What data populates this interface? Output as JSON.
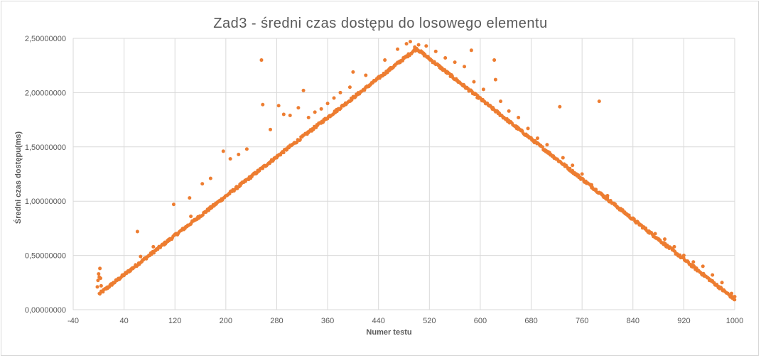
{
  "chart_data": {
    "type": "scatter",
    "title": "Zad3 - średni czas dostępu do losowego elementu",
    "xlabel": "Numer testu",
    "ylabel": "Średni czas dostępu(ms)",
    "xlim": [
      -40,
      1000
    ],
    "ylim": [
      0,
      2.5
    ],
    "x_ticks": [
      -40,
      40,
      120,
      200,
      280,
      360,
      440,
      520,
      600,
      680,
      760,
      840,
      920,
      1000
    ],
    "x_tick_labels": [
      "-40",
      "40",
      "120",
      "200",
      "280",
      "360",
      "440",
      "520",
      "600",
      "680",
      "760",
      "840",
      "920",
      "1000"
    ],
    "y_ticks": [
      0,
      0.5,
      1.0,
      1.5,
      2.0,
      2.5
    ],
    "y_tick_labels": [
      "0,00000000",
      "0,50000000",
      "1,00000000",
      "1,50000000",
      "2,00000000",
      "2,50000000"
    ],
    "grid": true,
    "legend": "none",
    "marker_color": "#ed7d31",
    "main_trend": {
      "rising": {
        "x_start": 1,
        "y_start": 0.14,
        "x_end": 500,
        "y_end": 2.4
      },
      "falling": {
        "x_start": 500,
        "y_end_at_x": 1000,
        "y_start": 2.4,
        "y_end": 0.09
      }
    },
    "series": [
      {
        "name": "",
        "points": [
          [
            -2,
            0.21
          ],
          [
            -1,
            0.27
          ],
          [
            0,
            0.33
          ],
          [
            1,
            0.3
          ],
          [
            2,
            0.38
          ],
          [
            3,
            0.29
          ],
          [
            4,
            0.22
          ],
          [
            61,
            0.72
          ],
          [
            66,
            0.49
          ],
          [
            86,
            0.58
          ],
          [
            100,
            0.6
          ],
          [
            118,
            0.97
          ],
          [
            143,
            1.03
          ],
          [
            145,
            0.86
          ],
          [
            163,
            1.16
          ],
          [
            176,
            1.21
          ],
          [
            196,
            1.46
          ],
          [
            207,
            1.39
          ],
          [
            220,
            1.43
          ],
          [
            233,
            1.48
          ],
          [
            256,
            2.3
          ],
          [
            258,
            1.89
          ],
          [
            270,
            1.66
          ],
          [
            283,
            1.88
          ],
          [
            291,
            1.8
          ],
          [
            301,
            1.79
          ],
          [
            314,
            1.86
          ],
          [
            322,
            2.02
          ],
          [
            330,
            1.77
          ],
          [
            340,
            1.82
          ],
          [
            350,
            1.85
          ],
          [
            360,
            1.9
          ],
          [
            370,
            1.95
          ],
          [
            380,
            2.0
          ],
          [
            395,
            2.05
          ],
          [
            400,
            2.19
          ],
          [
            420,
            2.16
          ],
          [
            450,
            2.3
          ],
          [
            470,
            2.4
          ],
          [
            484,
            2.45
          ],
          [
            490,
            2.47
          ],
          [
            497,
            2.42
          ],
          [
            503,
            2.44
          ],
          [
            515,
            2.43
          ],
          [
            530,
            2.38
          ],
          [
            545,
            2.32
          ],
          [
            560,
            2.28
          ],
          [
            575,
            2.24
          ],
          [
            586,
            2.39
          ],
          [
            590,
            2.1
          ],
          [
            605,
            2.03
          ],
          [
            622,
            2.3
          ],
          [
            624,
            2.12
          ],
          [
            632,
            1.92
          ],
          [
            645,
            1.83
          ],
          [
            660,
            1.77
          ],
          [
            675,
            1.67
          ],
          [
            690,
            1.58
          ],
          [
            705,
            1.52
          ],
          [
            725,
            1.87
          ],
          [
            730,
            1.4
          ],
          [
            745,
            1.33
          ],
          [
            760,
            1.25
          ],
          [
            775,
            1.15
          ],
          [
            787,
            1.92
          ],
          [
            800,
            1.05
          ],
          [
            815,
            0.95
          ],
          [
            830,
            0.88
          ],
          [
            845,
            0.8
          ],
          [
            860,
            0.75
          ],
          [
            875,
            0.7
          ],
          [
            890,
            0.65
          ],
          [
            905,
            0.58
          ],
          [
            920,
            0.5
          ],
          [
            935,
            0.44
          ],
          [
            950,
            0.4
          ],
          [
            965,
            0.32
          ],
          [
            980,
            0.25
          ],
          [
            995,
            0.15
          ],
          [
            1000,
            0.12
          ]
        ]
      }
    ]
  }
}
